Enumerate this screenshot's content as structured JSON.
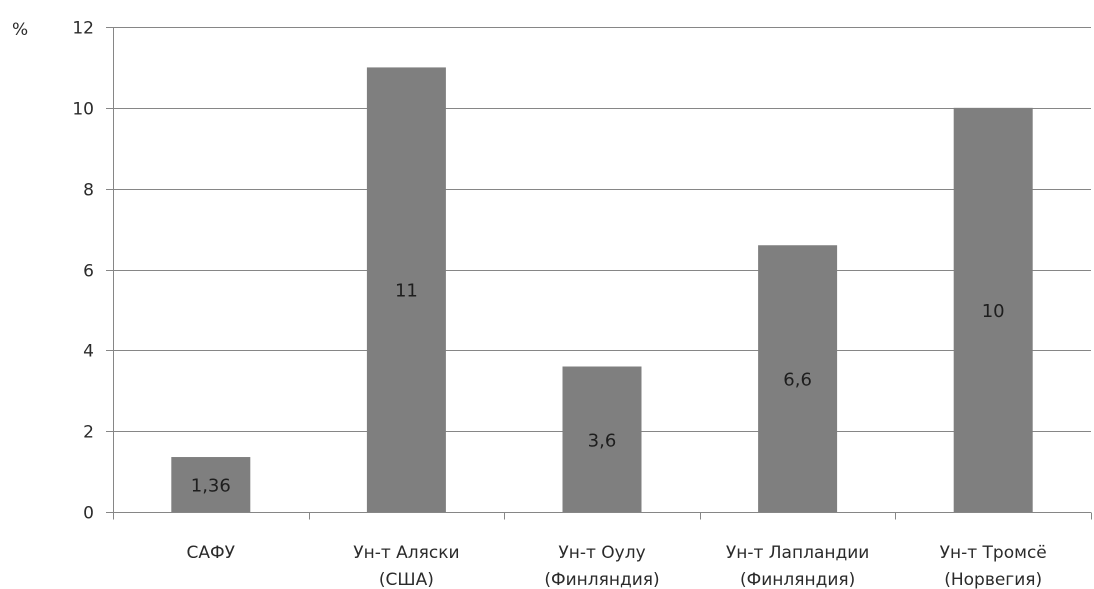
{
  "chart_data": {
    "type": "bar",
    "y_unit_label": "%",
    "categories": [
      [
        "САФУ"
      ],
      [
        "Ун-т Аляски",
        "(США)"
      ],
      [
        "Ун-т Оулу",
        "(Финляндия)"
      ],
      [
        "Ун-т Лапландии",
        "(Финляндия)"
      ],
      [
        "Ун-т Тромсё",
        "(Норвегия)"
      ]
    ],
    "values": [
      1.36,
      11,
      3.6,
      6.6,
      10
    ],
    "data_labels": [
      "1,36",
      "11",
      "3,6",
      "6,6",
      "10"
    ],
    "ylim": [
      0,
      12
    ],
    "yticks": [
      0,
      2,
      4,
      6,
      8,
      10,
      12
    ],
    "grid": true,
    "bar_color": "#7f7f7f",
    "grid_color": "#868686"
  }
}
